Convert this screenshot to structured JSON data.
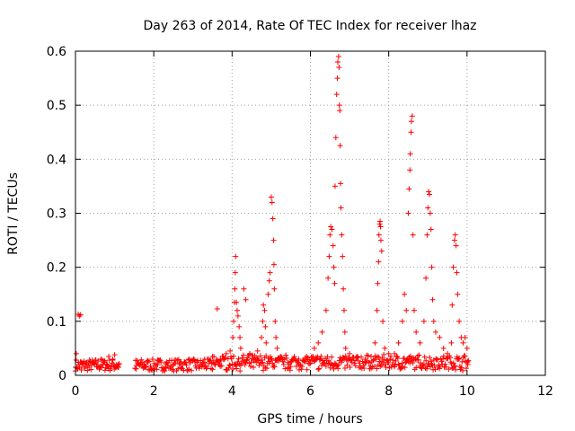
{
  "chart_data": {
    "type": "scatter",
    "title": "Day 263 of 2014, Rate Of TEC Index for receiver lhaz",
    "xlabel": "GPS time / hours",
    "ylabel": "ROTI / TECUs",
    "xlim": [
      0,
      12
    ],
    "ylim": [
      0,
      0.6
    ],
    "x_ticks": [
      0,
      2,
      4,
      6,
      8,
      10,
      12
    ],
    "x_tick_labels": [
      "0",
      "2",
      "4",
      "6",
      "8",
      "10",
      "12"
    ],
    "y_ticks": [
      0,
      0.1,
      0.2,
      0.3,
      0.4,
      0.5,
      0.6
    ],
    "y_tick_labels": [
      "0",
      "0.1",
      "0.2",
      "0.3",
      "0.4",
      "0.5",
      "0.6"
    ],
    "grid": true,
    "marker": "+",
    "color": "#ff0000",
    "series": [
      {
        "name": "ROTI",
        "points": [
          [
            0.0,
            0.015
          ],
          [
            0.02,
            0.04
          ],
          [
            0.05,
            0.012
          ],
          [
            0.07,
            0.113
          ],
          [
            0.1,
            0.11
          ],
          [
            0.13,
            0.112
          ],
          [
            0.15,
            0.01
          ],
          [
            0.25,
            0.02
          ],
          [
            0.35,
            0.015
          ],
          [
            0.45,
            0.025
          ],
          [
            0.55,
            0.02
          ],
          [
            0.65,
            0.03
          ],
          [
            0.75,
            0.025
          ],
          [
            0.85,
            0.035
          ],
          [
            0.95,
            0.03
          ],
          [
            1.0,
            0.038
          ],
          [
            1.05,
            0.02
          ],
          [
            1.1,
            0.015
          ],
          [
            1.55,
            0.012
          ],
          [
            1.65,
            0.02
          ],
          [
            1.75,
            0.015
          ],
          [
            1.85,
            0.025
          ],
          [
            1.95,
            0.01
          ],
          [
            2.1,
            0.02
          ],
          [
            2.3,
            0.015
          ],
          [
            2.5,
            0.02
          ],
          [
            2.7,
            0.025
          ],
          [
            2.9,
            0.03
          ],
          [
            3.1,
            0.025
          ],
          [
            3.3,
            0.03
          ],
          [
            3.5,
            0.035
          ],
          [
            3.62,
            0.123
          ],
          [
            3.7,
            0.03
          ],
          [
            3.85,
            0.04
          ],
          [
            3.95,
            0.045
          ],
          [
            4.02,
            0.07
          ],
          [
            4.04,
            0.1
          ],
          [
            4.06,
            0.135
          ],
          [
            4.07,
            0.16
          ],
          [
            4.08,
            0.19
          ],
          [
            4.09,
            0.22
          ],
          [
            4.11,
            0.135
          ],
          [
            4.13,
            0.12
          ],
          [
            4.15,
            0.11
          ],
          [
            4.18,
            0.09
          ],
          [
            4.2,
            0.07
          ],
          [
            4.22,
            0.05
          ],
          [
            4.3,
            0.16
          ],
          [
            4.35,
            0.14
          ],
          [
            4.45,
            0.04
          ],
          [
            4.55,
            0.03
          ],
          [
            4.65,
            0.045
          ],
          [
            4.75,
            0.07
          ],
          [
            4.78,
            0.1
          ],
          [
            4.8,
            0.13
          ],
          [
            4.83,
            0.12
          ],
          [
            4.85,
            0.09
          ],
          [
            4.87,
            0.06
          ],
          [
            4.92,
            0.15
          ],
          [
            4.95,
            0.175
          ],
          [
            4.97,
            0.19
          ],
          [
            5.0,
            0.33
          ],
          [
            5.02,
            0.32
          ],
          [
            5.04,
            0.29
          ],
          [
            5.06,
            0.25
          ],
          [
            5.07,
            0.205
          ],
          [
            5.08,
            0.16
          ],
          [
            5.1,
            0.1
          ],
          [
            5.12,
            0.07
          ],
          [
            5.15,
            0.05
          ],
          [
            5.3,
            0.03
          ],
          [
            5.5,
            0.025
          ],
          [
            5.7,
            0.03
          ],
          [
            5.9,
            0.035
          ],
          [
            6.1,
            0.05
          ],
          [
            6.2,
            0.06
          ],
          [
            6.3,
            0.08
          ],
          [
            6.4,
            0.12
          ],
          [
            6.45,
            0.18
          ],
          [
            6.48,
            0.22
          ],
          [
            6.5,
            0.26
          ],
          [
            6.52,
            0.275
          ],
          [
            6.55,
            0.27
          ],
          [
            6.58,
            0.24
          ],
          [
            6.6,
            0.2
          ],
          [
            6.62,
            0.17
          ],
          [
            6.63,
            0.35
          ],
          [
            6.65,
            0.44
          ],
          [
            6.67,
            0.52
          ],
          [
            6.69,
            0.55
          ],
          [
            6.7,
            0.58
          ],
          [
            6.72,
            0.59
          ],
          [
            6.73,
            0.57
          ],
          [
            6.74,
            0.5
          ],
          [
            6.75,
            0.49
          ],
          [
            6.76,
            0.425
          ],
          [
            6.77,
            0.355
          ],
          [
            6.78,
            0.31
          ],
          [
            6.8,
            0.26
          ],
          [
            6.82,
            0.22
          ],
          [
            6.84,
            0.16
          ],
          [
            6.86,
            0.12
          ],
          [
            6.88,
            0.08
          ],
          [
            6.9,
            0.05
          ],
          [
            7.0,
            0.04
          ],
          [
            7.2,
            0.035
          ],
          [
            7.4,
            0.03
          ],
          [
            7.55,
            0.035
          ],
          [
            7.65,
            0.06
          ],
          [
            7.7,
            0.12
          ],
          [
            7.72,
            0.17
          ],
          [
            7.74,
            0.21
          ],
          [
            7.75,
            0.26
          ],
          [
            7.77,
            0.28
          ],
          [
            7.78,
            0.285
          ],
          [
            7.79,
            0.275
          ],
          [
            7.8,
            0.25
          ],
          [
            7.82,
            0.23
          ],
          [
            7.85,
            0.1
          ],
          [
            7.9,
            0.05
          ],
          [
            8.0,
            0.04
          ],
          [
            8.15,
            0.04
          ],
          [
            8.25,
            0.06
          ],
          [
            8.35,
            0.1
          ],
          [
            8.4,
            0.15
          ],
          [
            8.45,
            0.12
          ],
          [
            8.5,
            0.3
          ],
          [
            8.52,
            0.345
          ],
          [
            8.54,
            0.38
          ],
          [
            8.55,
            0.41
          ],
          [
            8.57,
            0.45
          ],
          [
            8.58,
            0.47
          ],
          [
            8.6,
            0.48
          ],
          [
            8.62,
            0.26
          ],
          [
            8.65,
            0.12
          ],
          [
            8.7,
            0.08
          ],
          [
            8.8,
            0.06
          ],
          [
            8.9,
            0.1
          ],
          [
            8.95,
            0.18
          ],
          [
            8.98,
            0.26
          ],
          [
            9.0,
            0.31
          ],
          [
            9.02,
            0.34
          ],
          [
            9.04,
            0.335
          ],
          [
            9.06,
            0.3
          ],
          [
            9.08,
            0.27
          ],
          [
            9.1,
            0.2
          ],
          [
            9.12,
            0.14
          ],
          [
            9.15,
            0.1
          ],
          [
            9.2,
            0.08
          ],
          [
            9.3,
            0.07
          ],
          [
            9.4,
            0.05
          ],
          [
            9.5,
            0.04
          ],
          [
            9.6,
            0.06
          ],
          [
            9.62,
            0.13
          ],
          [
            9.65,
            0.2
          ],
          [
            9.68,
            0.25
          ],
          [
            9.7,
            0.26
          ],
          [
            9.72,
            0.24
          ],
          [
            9.74,
            0.19
          ],
          [
            9.76,
            0.15
          ],
          [
            9.8,
            0.1
          ],
          [
            9.85,
            0.07
          ],
          [
            9.9,
            0.06
          ],
          [
            9.95,
            0.07
          ],
          [
            10.0,
            0.05
          ],
          [
            10.02,
            0.02
          ]
        ]
      }
    ]
  }
}
